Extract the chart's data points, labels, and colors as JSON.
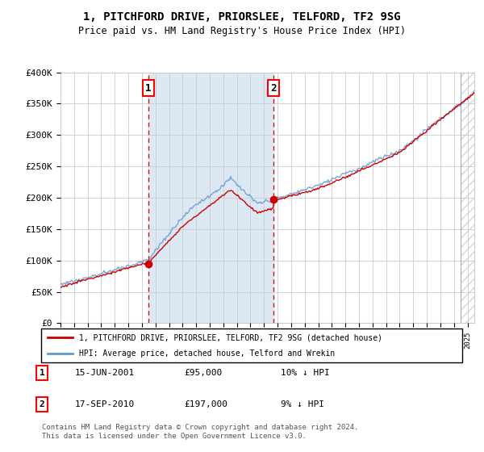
{
  "title": "1, PITCHFORD DRIVE, PRIORSLEE, TELFORD, TF2 9SG",
  "subtitle": "Price paid vs. HM Land Registry's House Price Index (HPI)",
  "ylim": [
    0,
    400000
  ],
  "yticks": [
    0,
    50000,
    100000,
    150000,
    200000,
    250000,
    300000,
    350000,
    400000
  ],
  "ytick_labels": [
    "£0",
    "£50K",
    "£100K",
    "£150K",
    "£200K",
    "£250K",
    "£300K",
    "£350K",
    "£400K"
  ],
  "sale1_date": 2001.46,
  "sale1_price": 95000,
  "sale2_date": 2010.71,
  "sale2_price": 197000,
  "hpi_line_color": "#6699cc",
  "price_line_color": "#cc0000",
  "bg_color": "#f5f5f5",
  "shade_color": "#dce9f5",
  "grid_color": "#cccccc",
  "legend_label_price": "1, PITCHFORD DRIVE, PRIORSLEE, TELFORD, TF2 9SG (detached house)",
  "legend_label_hpi": "HPI: Average price, detached house, Telford and Wrekin",
  "table_row1": [
    "1",
    "15-JUN-2001",
    "£95,000",
    "10% ↓ HPI"
  ],
  "table_row2": [
    "2",
    "17-SEP-2010",
    "£197,000",
    "9% ↓ HPI"
  ],
  "footer": "Contains HM Land Registry data © Crown copyright and database right 2024.\nThis data is licensed under the Open Government Licence v3.0.",
  "xmin": 1995,
  "xmax": 2025.5
}
